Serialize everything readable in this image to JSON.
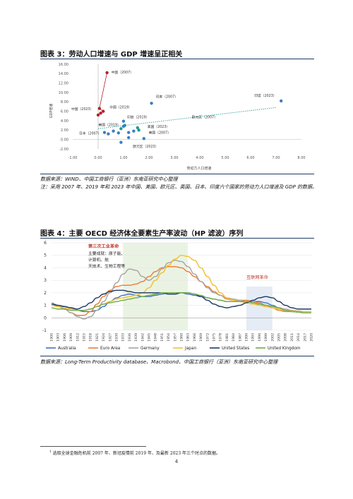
{
  "figure3": {
    "title": "图表 3：劳动人口增速与 GDP 增速呈正相关",
    "source": "数据来源：WIND、中国工商银行（亚洲）东南亚研究中心整理",
    "note": "注：采用 2007 年、2019 年和 2023 年中国、美国、欧元区、英国、日本、印度六个国家的劳动力人口增速及 GDP 的数据。",
    "chart_data": {
      "type": "scatter",
      "xlabel": "劳动力人口增速",
      "ylabel": "GDP增速",
      "xlim": [
        -1.0,
        8.0
      ],
      "ylim": [
        -2.0,
        16.0
      ],
      "x_ticks": [
        "-1.00",
        "0.00",
        "1.00",
        "2.00",
        "3.00",
        "4.00",
        "5.00",
        "6.00",
        "7.00",
        "8.00"
      ],
      "y_ticks": [
        "-2.00",
        "0.00",
        "2.00",
        "4.00",
        "6.00",
        "8.00",
        "10.00",
        "12.00",
        "14.00",
        "16.00"
      ],
      "series": [
        {
          "points": [
            {
              "label": "中国（2007）",
              "x": 0.35,
              "y": 14.2
            },
            {
              "label": "中国（2023）",
              "x": 0.0,
              "y": 5.2
            },
            {
              "label": "中国（2019）",
              "x": 0.2,
              "y": 6.0
            },
            {
              "label": "",
              "x": 0.1,
              "y": 5.6
            },
            {
              "label": "",
              "x": 0.05,
              "y": 6.6
            }
          ]
        },
        {
          "points": [
            {
              "label": "印度（2007）",
              "x": 2.1,
              "y": 7.7
            },
            {
              "label": "印度（2023）",
              "x": 7.2,
              "y": 8.2
            },
            {
              "label": "印度（2019）",
              "x": 1.0,
              "y": 3.9
            },
            {
              "label": "美国（2019）",
              "x": 0.9,
              "y": 2.3
            },
            {
              "label": "美国（2023）",
              "x": 1.55,
              "y": 2.5
            },
            {
              "label": "美国（2007）",
              "x": 1.6,
              "y": 2.0
            },
            {
              "label": "欧元区（2007）",
              "x": 1.05,
              "y": 3.0
            },
            {
              "label": "日本（2007）",
              "x": 0.25,
              "y": 1.5
            },
            {
              "label": "欧元区（2023）",
              "x": 1.2,
              "y": 0.4
            },
            {
              "label": "",
              "x": 0.6,
              "y": 1.8
            },
            {
              "label": "",
              "x": 0.4,
              "y": 1.2
            },
            {
              "label": "",
              "x": 0.8,
              "y": 1.4
            },
            {
              "label": "",
              "x": 1.4,
              "y": 1.8
            },
            {
              "label": "",
              "x": 1.8,
              "y": 0.2
            },
            {
              "label": "",
              "x": 0.9,
              "y": -0.6
            },
            {
              "label": "",
              "x": 1.2,
              "y": 1.5
            },
            {
              "label": "",
              "x": 1.0,
              "y": 2.8
            }
          ]
        }
      ],
      "trendline": {
        "x": [
          0.0,
          7.0
        ],
        "y": [
          2.3,
          6.8
        ]
      },
      "colors": {
        "china": "#b0242b",
        "others": "#3b7ec4",
        "teal": "#1a9b8f"
      }
    }
  },
  "figure4": {
    "title": "图表 4：主要 OECD 经济体全要素生产率波动（HP 滤波）序列",
    "source": "数据来源：Long-Term Productivity database、Macrobond、中国工商银行（亚洲）东南亚研究中心整理",
    "chart_data": {
      "type": "line",
      "ylim": [
        -1,
        6
      ],
      "y_ticks": [
        "-1",
        "0",
        "1",
        "2",
        "3",
        "4",
        "5",
        "6"
      ],
      "x": [
        "1900",
        "1903",
        "1906",
        "1909",
        "1912",
        "1915",
        "1918",
        "1921",
        "1924",
        "1927",
        "1930",
        "1933",
        "1936",
        "1939",
        "1942",
        "1945",
        "1948",
        "1951",
        "1954",
        "1957",
        "1960",
        "1963",
        "1966",
        "1969",
        "1972",
        "1975",
        "1978",
        "1981",
        "1984",
        "1987",
        "1990",
        "1993",
        "1996",
        "1999",
        "2002",
        "2005",
        "2008",
        "2011",
        "2014",
        "2017",
        "2020"
      ],
      "annotations": {
        "third_revolution_title": "第三次工业革命",
        "third_revolution_text": [
          "主要成就：原子能、",
          "计算机、航",
          "天技术、生物工程等"
        ],
        "internet_revolution": "互联网革命"
      },
      "shaded_ranges": [
        [
          "1933",
          "1963"
        ],
        [
          "1990",
          "2002"
        ]
      ],
      "series": [
        {
          "name": "Australia",
          "color": "#4472c4",
          "values": [
            1.0,
            1.0,
            0.9,
            0.8,
            0.6,
            0.5,
            0.5,
            0.6,
            0.9,
            1.3,
            1.6,
            1.8,
            1.9,
            1.8,
            1.7,
            1.7,
            1.8,
            1.9,
            2.0,
            2.0,
            2.0,
            1.9,
            1.8,
            1.7,
            1.6,
            1.5,
            1.4,
            1.3,
            1.3,
            1.3,
            1.3,
            1.3,
            1.3,
            1.2,
            1.0,
            0.8,
            0.6,
            0.5,
            0.45,
            0.4,
            0.4
          ]
        },
        {
          "name": "Euro Area",
          "color": "#ed7d31",
          "values": [
            1.0,
            0.9,
            0.7,
            0.4,
            0.2,
            0.2,
            0.5,
            1.1,
            1.7,
            2.2,
            2.5,
            2.6,
            2.6,
            2.7,
            2.9,
            3.3,
            3.7,
            4.0,
            4.1,
            4.1,
            4.0,
            3.7,
            3.3,
            2.9,
            2.5,
            2.1,
            1.8,
            1.5,
            1.4,
            1.4,
            1.4,
            1.3,
            1.2,
            1.0,
            0.8,
            0.6,
            0.5,
            0.5,
            0.45,
            0.4,
            0.4
          ]
        },
        {
          "name": "Germany",
          "color": "#a5a5a5",
          "values": [
            1.2,
            1.0,
            0.7,
            0.4,
            0.1,
            -0.1,
            0.1,
            0.6,
            1.3,
            2.0,
            2.8,
            3.5,
            3.9,
            3.8,
            3.3,
            3.0,
            3.3,
            3.9,
            4.4,
            4.6,
            4.5,
            4.1,
            3.5,
            2.9,
            2.4,
            2.0,
            1.8,
            1.6,
            1.5,
            1.4,
            1.3,
            1.2,
            1.1,
            1.0,
            0.9,
            0.8,
            0.7,
            0.6,
            0.55,
            0.5,
            0.5
          ]
        },
        {
          "name": "Japan",
          "color": "#f2c12e",
          "values": [
            1.0,
            0.9,
            0.8,
            0.7,
            0.6,
            0.6,
            0.7,
            0.9,
            1.1,
            1.3,
            1.5,
            1.6,
            1.7,
            1.8,
            2.0,
            2.4,
            3.0,
            3.6,
            4.2,
            4.7,
            5.0,
            4.9,
            4.6,
            4.0,
            3.3,
            2.6,
            2.0,
            1.6,
            1.4,
            1.3,
            1.2,
            1.1,
            1.0,
            0.9,
            0.8,
            0.7,
            0.6,
            0.55,
            0.5,
            0.5,
            0.5
          ]
        },
        {
          "name": "United States",
          "color": "#1f3864",
          "values": [
            1.1,
            1.0,
            0.9,
            0.8,
            0.7,
            0.9,
            1.2,
            1.6,
            1.9,
            2.1,
            2.2,
            2.2,
            2.1,
            2.0,
            2.0,
            2.0,
            2.0,
            2.0,
            1.9,
            1.9,
            2.0,
            2.0,
            1.9,
            1.7,
            1.4,
            1.1,
            0.9,
            0.8,
            0.9,
            1.0,
            1.2,
            1.4,
            1.6,
            1.7,
            1.6,
            1.3,
            1.0,
            0.8,
            0.7,
            0.7,
            0.7
          ]
        },
        {
          "name": "United Kingdom",
          "color": "#70ad47",
          "values": [
            0.8,
            0.7,
            0.7,
            0.6,
            0.6,
            0.6,
            0.7,
            0.9,
            1.1,
            1.2,
            1.3,
            1.4,
            1.5,
            1.6,
            1.7,
            1.8,
            1.9,
            2.0,
            2.0,
            2.0,
            2.0,
            2.0,
            1.9,
            1.8,
            1.6,
            1.5,
            1.4,
            1.3,
            1.3,
            1.3,
            1.3,
            1.2,
            1.1,
            1.0,
            0.9,
            0.8,
            0.6,
            0.5,
            0.45,
            0.4,
            0.4
          ]
        }
      ]
    }
  },
  "footnote": {
    "marker": "1",
    "text": "选取全球金融危机前 2007 年、新冠疫情前 2019 年、及最新 2023 年三个时点的数据。"
  },
  "page_number": "4"
}
